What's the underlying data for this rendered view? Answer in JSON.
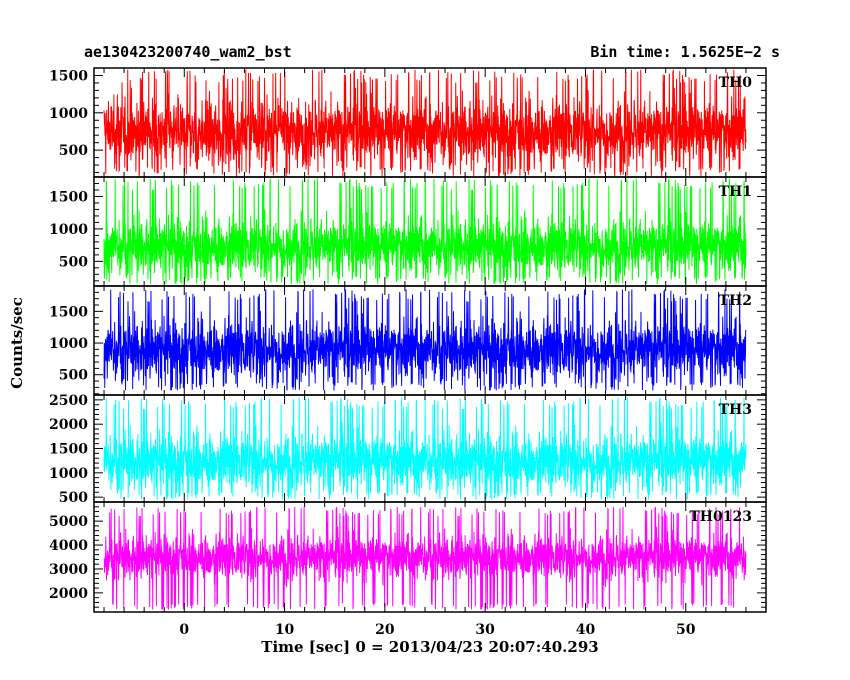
{
  "header": {
    "title": "ae130423200740_wam2_bst",
    "bin_time": "Bin time: 1.5625E−2 s"
  },
  "axes": {
    "xlabel": "Time [sec] 0 = 2013/04/23 20:07:40.293",
    "ylabel": "Counts/sec"
  },
  "chart_data": {
    "type": "line",
    "xlim": [
      -9,
      58
    ],
    "x_range_of_data": [
      -8,
      56
    ],
    "x_ticks": [
      0,
      10,
      20,
      30,
      40,
      50
    ],
    "x_tick_labels": [
      "0",
      "10",
      "20",
      "30",
      "40",
      "50"
    ],
    "bin_time_s": 0.015625,
    "grid": false,
    "panels": [
      {
        "name": "TH0",
        "color": "#ff0000",
        "ylim": [
          140,
          1600
        ],
        "yticks": [
          500,
          1000,
          1500
        ],
        "ytick_labels": [
          "500",
          "1000",
          "1500"
        ],
        "mean": 750,
        "min": 150,
        "max": 1580,
        "spread": 300
      },
      {
        "name": "TH1",
        "color": "#00ff00",
        "ylim": [
          120,
          1800
        ],
        "yticks": [
          500,
          1000,
          1500
        ],
        "ytick_labels": [
          "500",
          "1000",
          "1500"
        ],
        "mean": 740,
        "min": 150,
        "max": 1780,
        "spread": 300
      },
      {
        "name": "TH2",
        "color": "#0000ff",
        "ylim": [
          180,
          1900
        ],
        "yticks": [
          500,
          1000,
          1500
        ],
        "ytick_labels": [
          "500",
          "1000",
          "1500"
        ],
        "mean": 900,
        "min": 250,
        "max": 1850,
        "spread": 330
      },
      {
        "name": "TH3",
        "color": "#00ffff",
        "ylim": [
          400,
          2600
        ],
        "yticks": [
          500,
          1000,
          1500,
          2000,
          2500
        ],
        "ytick_labels": [
          "500",
          "1000",
          "1500",
          "2000",
          "2500"
        ],
        "mean": 1250,
        "min": 450,
        "max": 2550,
        "spread": 400
      },
      {
        "name": "TH0123",
        "color": "#ff00ff",
        "ylim": [
          1200,
          5800
        ],
        "yticks": [
          2000,
          3000,
          4000,
          5000
        ],
        "ytick_labels": [
          "2000",
          "3000",
          "4000",
          "5000"
        ],
        "mean": 3500,
        "min": 1300,
        "max": 5600,
        "spread": 650
      }
    ]
  }
}
